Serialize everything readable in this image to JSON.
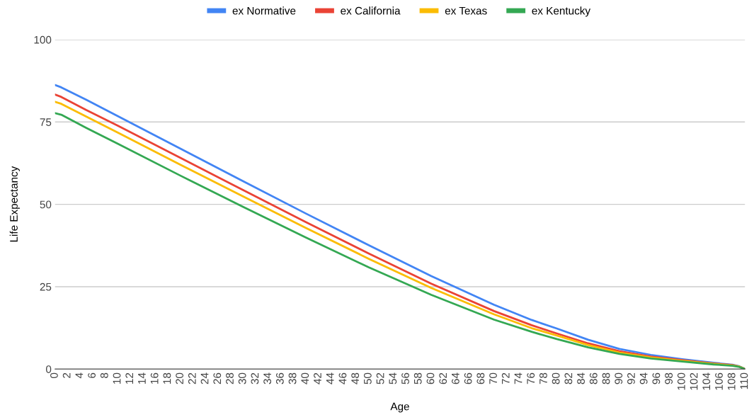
{
  "chart_data": {
    "type": "line",
    "xlabel": "Age",
    "ylabel": "Life Expectancy",
    "x": [
      0,
      1,
      5,
      10,
      20,
      30,
      40,
      50,
      60,
      70,
      76,
      80,
      85,
      90,
      95,
      100,
      105,
      108,
      109,
      110
    ],
    "series": [
      {
        "name": "ex Normative",
        "color": "#4285f4",
        "values": [
          86.2,
          85.5,
          81.7,
          76.8,
          66.9,
          57.0,
          47.2,
          37.6,
          28.2,
          19.5,
          14.9,
          12.3,
          8.9,
          6.1,
          4.3,
          3.0,
          1.9,
          1.3,
          0.9,
          0
        ]
      },
      {
        "name": "ex California",
        "color": "#ea4335",
        "values": [
          83.3,
          82.6,
          78.6,
          73.9,
          64.1,
          54.3,
          44.6,
          35.1,
          25.9,
          17.6,
          13.3,
          10.8,
          7.8,
          5.4,
          3.8,
          2.7,
          1.7,
          1.2,
          0.8,
          0
        ]
      },
      {
        "name": "ex Texas",
        "color": "#fbbc04",
        "values": [
          81.1,
          80.5,
          76.6,
          71.8,
          62.0,
          52.4,
          42.8,
          33.5,
          24.6,
          16.6,
          12.4,
          10.2,
          7.3,
          5.0,
          3.5,
          2.5,
          1.6,
          1.1,
          0.8,
          0
        ]
      },
      {
        "name": "ex Kentucky",
        "color": "#34a853",
        "values": [
          77.7,
          77.2,
          73.2,
          68.4,
          58.7,
          49.2,
          39.9,
          30.9,
          22.5,
          15.0,
          11.3,
          9.1,
          6.6,
          4.6,
          3.2,
          2.3,
          1.4,
          1.0,
          0.7,
          0
        ]
      }
    ],
    "xlim": [
      0,
      110
    ],
    "xticks": [
      0,
      2,
      4,
      6,
      8,
      10,
      12,
      14,
      16,
      18,
      20,
      22,
      24,
      26,
      28,
      30,
      32,
      34,
      36,
      38,
      40,
      42,
      44,
      46,
      48,
      50,
      52,
      54,
      56,
      58,
      60,
      62,
      64,
      66,
      68,
      70,
      72,
      74,
      76,
      78,
      80,
      82,
      84,
      86,
      88,
      90,
      92,
      94,
      96,
      98,
      100,
      102,
      104,
      106,
      108,
      110
    ],
    "ylim": [
      0,
      100
    ],
    "yticks": [
      0,
      25,
      50,
      75,
      100
    ],
    "grid": "y",
    "legend": "top",
    "marker": "none",
    "line_style": "solid"
  }
}
